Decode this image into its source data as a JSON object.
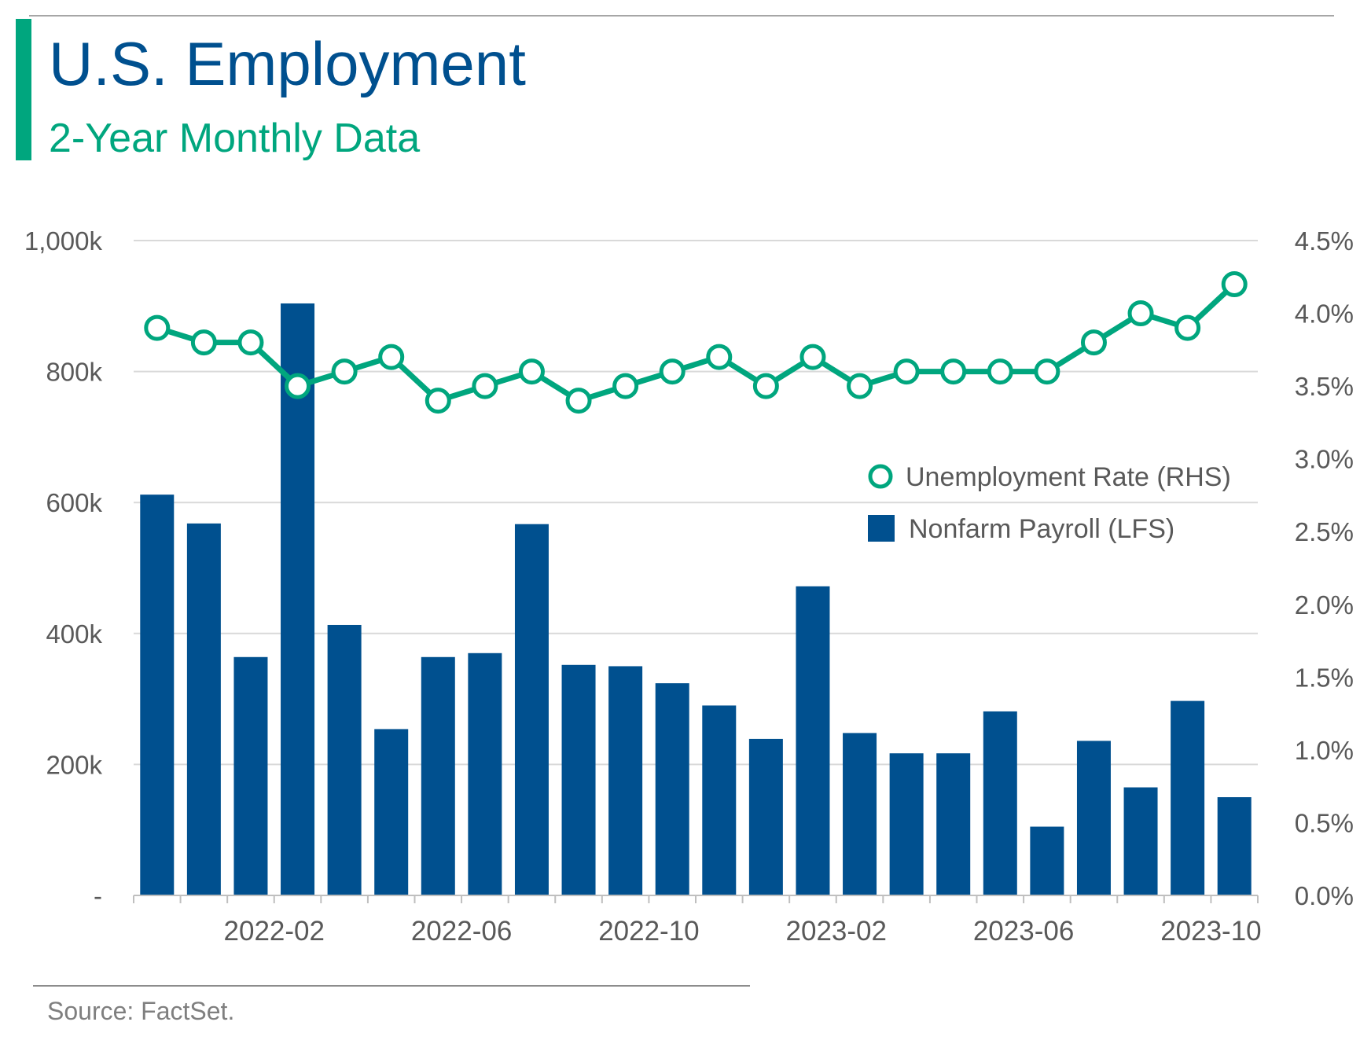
{
  "header": {
    "title": "U.S. Employment",
    "subtitle": "2-Year Monthly Data"
  },
  "footer": {
    "source": "Source: FactSet."
  },
  "colors": {
    "bars": "#00508f",
    "line": "#00a67e",
    "title": "#00508f",
    "subtitle": "#00a67e",
    "grid": "#d9d9d9",
    "axis_text": "#595959"
  },
  "chart_data": {
    "type": "bar+line",
    "x_tick_labels": [
      "2022-02",
      "2022-06",
      "2022-10",
      "2023-02",
      "2023-06",
      "2023-10"
    ],
    "x_tick_every": 4,
    "x_tick_first_index": 3,
    "left_axis": {
      "ticks": [
        "-",
        "200k",
        "400k",
        "600k",
        "800k",
        "1,000k"
      ],
      "ylim": [
        0,
        1000
      ]
    },
    "right_axis": {
      "ticks": [
        "0.0%",
        "0.5%",
        "1.0%",
        "1.5%",
        "2.0%",
        "2.5%",
        "3.0%",
        "3.5%",
        "4.0%",
        "4.5%"
      ],
      "ylim": [
        0,
        4.5
      ]
    },
    "grid": true,
    "legend_position": "right-middle",
    "series": [
      {
        "name": "Unemployment Rate (RHS)",
        "type": "line",
        "axis": "right",
        "values": [
          3.9,
          3.8,
          3.8,
          3.5,
          3.6,
          3.7,
          3.4,
          3.5,
          3.6,
          3.4,
          3.5,
          3.6,
          3.7,
          3.5,
          3.7,
          3.5,
          3.6,
          3.6,
          3.6,
          3.6,
          3.8,
          4.0,
          3.9,
          4.2
        ]
      },
      {
        "name": "Nonfarm Payroll (LFS)",
        "type": "bar",
        "axis": "left",
        "values": [
          612,
          568,
          364,
          904,
          413,
          254,
          364,
          370,
          567,
          352,
          350,
          324,
          290,
          239,
          472,
          248,
          217,
          217,
          281,
          105,
          236,
          165,
          297,
          150
        ]
      }
    ]
  }
}
